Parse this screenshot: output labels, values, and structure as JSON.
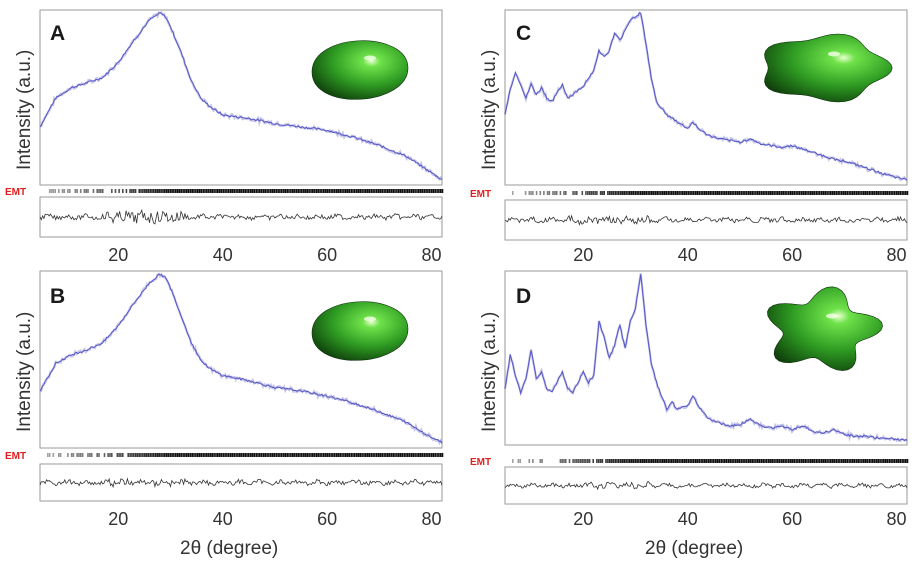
{
  "figure": {
    "x_label": "2θ (degree)",
    "y_label": "Intensity (a.u.)",
    "marker_label": "EMT",
    "colors": {
      "calc": "#5a5ac8",
      "obs": "#9a9ad8",
      "diff": "#333333",
      "emt": "#e02020",
      "ticks": "#111111"
    }
  },
  "chart_data": [
    {
      "type": "line",
      "panel": "A",
      "xlabel": "",
      "ylabel": "Intensity (a.u.)",
      "xlim": [
        5,
        82
      ],
      "x_ticks": [
        "20",
        "40",
        "60",
        "80"
      ],
      "grid": false,
      "shape_icon": "green-3d-disc-shape",
      "series": [
        {
          "x": [
            5,
            8,
            11,
            14,
            17,
            20,
            23,
            26,
            28,
            29,
            30,
            32,
            34,
            36,
            38,
            40,
            45,
            50,
            55,
            60,
            65,
            70,
            75,
            80,
            82
          ],
          "y": [
            0.33,
            0.5,
            0.56,
            0.59,
            0.62,
            0.71,
            0.84,
            0.96,
            1.0,
            0.98,
            0.92,
            0.77,
            0.6,
            0.49,
            0.44,
            0.4,
            0.38,
            0.35,
            0.33,
            0.31,
            0.27,
            0.22,
            0.16,
            0.06,
            0.02
          ]
        }
      ]
    },
    {
      "type": "line",
      "panel": "B",
      "xlabel": "2θ (degree)",
      "ylabel": "Intensity (a.u.)",
      "xlim": [
        5,
        82
      ],
      "x_ticks": [
        "20",
        "40",
        "60",
        "80"
      ],
      "grid": false,
      "shape_icon": "green-3d-lobed-shape",
      "series": [
        {
          "x": [
            5,
            8,
            11,
            14,
            17,
            20,
            23,
            26,
            28,
            29,
            30,
            32,
            34,
            36,
            38,
            40,
            45,
            50,
            55,
            60,
            65,
            70,
            75,
            80,
            82
          ],
          "y": [
            0.32,
            0.48,
            0.53,
            0.56,
            0.6,
            0.7,
            0.83,
            0.95,
            1.0,
            0.98,
            0.92,
            0.76,
            0.6,
            0.49,
            0.44,
            0.41,
            0.38,
            0.34,
            0.32,
            0.29,
            0.25,
            0.2,
            0.14,
            0.05,
            0.02
          ]
        }
      ]
    },
    {
      "type": "line",
      "panel": "C",
      "xlabel": "",
      "ylabel": "Intensity (a.u.)",
      "xlim": [
        5,
        82
      ],
      "x_ticks": [
        "20",
        "40",
        "60",
        "80"
      ],
      "grid": false,
      "shape_icon": "green-3d-lobed-shape",
      "series": [
        {
          "x": [
            5,
            6,
            7,
            8,
            9,
            10,
            11,
            12,
            13,
            14,
            15,
            16,
            17,
            18,
            20,
            21,
            22,
            23,
            24,
            25,
            26,
            27,
            28,
            29,
            30,
            31,
            32,
            33,
            34,
            36,
            38,
            40,
            41,
            42,
            44,
            46,
            48,
            50,
            52,
            54,
            56,
            58,
            60,
            62,
            64,
            66,
            68,
            70,
            72,
            74,
            76,
            78,
            80,
            82
          ],
          "y": [
            0.4,
            0.55,
            0.65,
            0.58,
            0.5,
            0.58,
            0.52,
            0.56,
            0.5,
            0.48,
            0.53,
            0.58,
            0.5,
            0.52,
            0.57,
            0.62,
            0.66,
            0.78,
            0.74,
            0.78,
            0.88,
            0.84,
            0.9,
            0.96,
            0.98,
            1.0,
            0.82,
            0.62,
            0.48,
            0.4,
            0.36,
            0.32,
            0.36,
            0.32,
            0.28,
            0.26,
            0.25,
            0.24,
            0.26,
            0.23,
            0.22,
            0.21,
            0.22,
            0.2,
            0.18,
            0.16,
            0.14,
            0.13,
            0.11,
            0.09,
            0.07,
            0.05,
            0.03,
            0.02
          ]
        }
      ]
    },
    {
      "type": "line",
      "panel": "D",
      "xlabel": "2θ (degree)",
      "ylabel": "Intensity (a.u.)",
      "xlim": [
        5,
        82
      ],
      "x_ticks": [
        "20",
        "40",
        "60",
        "80"
      ],
      "grid": false,
      "shape_icon": "green-3d-star-shape",
      "series": [
        {
          "x": [
            5,
            6,
            7,
            8,
            9,
            10,
            11,
            12,
            13,
            14,
            15,
            16,
            17,
            18,
            19,
            20,
            21,
            22,
            23,
            24,
            25,
            26,
            27,
            28,
            29,
            30,
            31,
            32,
            33,
            34,
            35,
            36,
            37,
            38,
            40,
            41,
            42,
            44,
            46,
            48,
            50,
            52,
            54,
            56,
            58,
            60,
            62,
            64,
            66,
            68,
            70,
            72,
            74,
            76,
            78,
            80,
            82
          ],
          "y": [
            0.32,
            0.52,
            0.4,
            0.3,
            0.38,
            0.55,
            0.38,
            0.42,
            0.32,
            0.3,
            0.36,
            0.42,
            0.32,
            0.3,
            0.36,
            0.42,
            0.36,
            0.4,
            0.72,
            0.62,
            0.5,
            0.58,
            0.7,
            0.56,
            0.72,
            0.8,
            1.0,
            0.7,
            0.48,
            0.36,
            0.28,
            0.2,
            0.24,
            0.2,
            0.22,
            0.28,
            0.22,
            0.14,
            0.12,
            0.1,
            0.11,
            0.14,
            0.1,
            0.09,
            0.1,
            0.08,
            0.1,
            0.07,
            0.06,
            0.08,
            0.05,
            0.04,
            0.04,
            0.03,
            0.03,
            0.02,
            0.02
          ]
        }
      ]
    }
  ]
}
